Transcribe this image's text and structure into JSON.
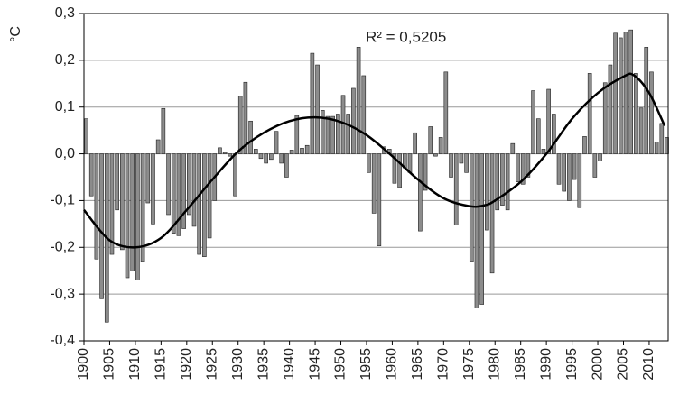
{
  "chart_data": {
    "type": "bar",
    "ylabel": "°C",
    "annotation": "R² = 0,5205",
    "xlim": [
      1900,
      2013.7
    ],
    "xticks": [
      1900,
      1905,
      1910,
      1915,
      1920,
      1925,
      1930,
      1935,
      1940,
      1945,
      1950,
      1955,
      1960,
      1965,
      1970,
      1975,
      1980,
      1985,
      1990,
      1995,
      2000,
      2005,
      2010
    ],
    "ylim": [
      -0.4,
      0.3
    ],
    "yticks": [
      {
        "value": -0.4,
        "label": "-0,4"
      },
      {
        "value": -0.3,
        "label": "-0,3"
      },
      {
        "value": -0.2,
        "label": "-0,2"
      },
      {
        "value": -0.1,
        "label": "-0,1"
      },
      {
        "value": 0,
        "label": "0,0"
      },
      {
        "value": 0.1,
        "label": "0,1"
      },
      {
        "value": 0.2,
        "label": "0,2"
      },
      {
        "value": 0.3,
        "label": "0,3"
      }
    ],
    "grid": true,
    "series": [
      {
        "type": "bar",
        "color": "#8c8c8c",
        "x": [
          1900,
          1901,
          1902,
          1903,
          1904,
          1905,
          1906,
          1907,
          1908,
          1909,
          1910,
          1911,
          1912,
          1913,
          1914,
          1915,
          1916,
          1917,
          1918,
          1919,
          1920,
          1921,
          1922,
          1923,
          1924,
          1925,
          1926,
          1927,
          1928,
          1929,
          1930,
          1931,
          1932,
          1933,
          1934,
          1935,
          1936,
          1937,
          1938,
          1939,
          1940,
          1941,
          1942,
          1943,
          1944,
          1945,
          1946,
          1947,
          1948,
          1949,
          1950,
          1951,
          1952,
          1953,
          1954,
          1955,
          1956,
          1957,
          1958,
          1959,
          1960,
          1961,
          1962,
          1963,
          1964,
          1965,
          1966,
          1967,
          1968,
          1969,
          1970,
          1971,
          1972,
          1973,
          1974,
          1975,
          1976,
          1977,
          1978,
          1979,
          1980,
          1981,
          1982,
          1983,
          1984,
          1985,
          1986,
          1987,
          1988,
          1989,
          1990,
          1991,
          1992,
          1993,
          1994,
          1995,
          1996,
          1997,
          1998,
          1999,
          2000,
          2001,
          2002,
          2003,
          2004,
          2005,
          2006,
          2007,
          2008,
          2009,
          2010,
          2011,
          2012,
          2013
        ],
        "values": [
          0.075,
          -0.09,
          -0.225,
          -0.31,
          -0.36,
          -0.215,
          -0.12,
          -0.205,
          -0.265,
          -0.25,
          -0.27,
          -0.23,
          -0.105,
          -0.15,
          0.03,
          0.097,
          -0.13,
          -0.17,
          -0.175,
          -0.16,
          -0.13,
          -0.155,
          -0.215,
          -0.22,
          -0.18,
          -0.1,
          0.013,
          0.003,
          -0.005,
          -0.09,
          0.123,
          0.153,
          0.07,
          0.01,
          -0.01,
          -0.02,
          -0.012,
          0.048,
          -0.02,
          -0.05,
          0.008,
          0.082,
          0.012,
          0.018,
          0.215,
          0.19,
          0.093,
          0.08,
          0.08,
          0.085,
          0.125,
          0.085,
          0.14,
          0.228,
          0.167,
          -0.04,
          -0.127,
          -0.197,
          0.015,
          0.01,
          -0.063,
          -0.072,
          -0.03,
          -0.04,
          0.045,
          -0.165,
          -0.078,
          0.058,
          -0.005,
          0.035,
          0.175,
          -0.05,
          -0.152,
          -0.02,
          -0.04,
          -0.23,
          -0.33,
          -0.322,
          -0.163,
          -0.255,
          -0.12,
          -0.11,
          -0.12,
          0.022,
          -0.06,
          -0.065,
          -0.05,
          0.135,
          0.075,
          0.01,
          0.138,
          0.085,
          -0.065,
          -0.08,
          -0.1,
          -0.055,
          -0.115,
          0.037,
          0.172,
          -0.05,
          -0.015,
          0.152,
          0.19,
          0.258,
          0.248,
          0.26,
          0.265,
          0.172,
          0.098,
          0.228,
          0.175,
          0.025,
          0.065,
          0.035
        ]
      },
      {
        "type": "line",
        "color": "#000000",
        "x": [
          1900,
          1905,
          1910,
          1915,
          1920,
          1925,
          1930,
          1935,
          1940,
          1945,
          1950,
          1955,
          1960,
          1965,
          1970,
          1975,
          1978,
          1980,
          1985,
          1990,
          1995,
          2000,
          2005,
          2007,
          2010,
          2013
        ],
        "values": [
          -0.12,
          -0.185,
          -0.2,
          -0.18,
          -0.12,
          -0.055,
          0.005,
          0.045,
          0.07,
          0.078,
          0.068,
          0.04,
          -0.005,
          -0.055,
          -0.095,
          -0.112,
          -0.11,
          -0.1,
          -0.06,
          0.0,
          0.075,
          0.13,
          0.165,
          0.168,
          0.13,
          0.06
        ]
      }
    ]
  }
}
